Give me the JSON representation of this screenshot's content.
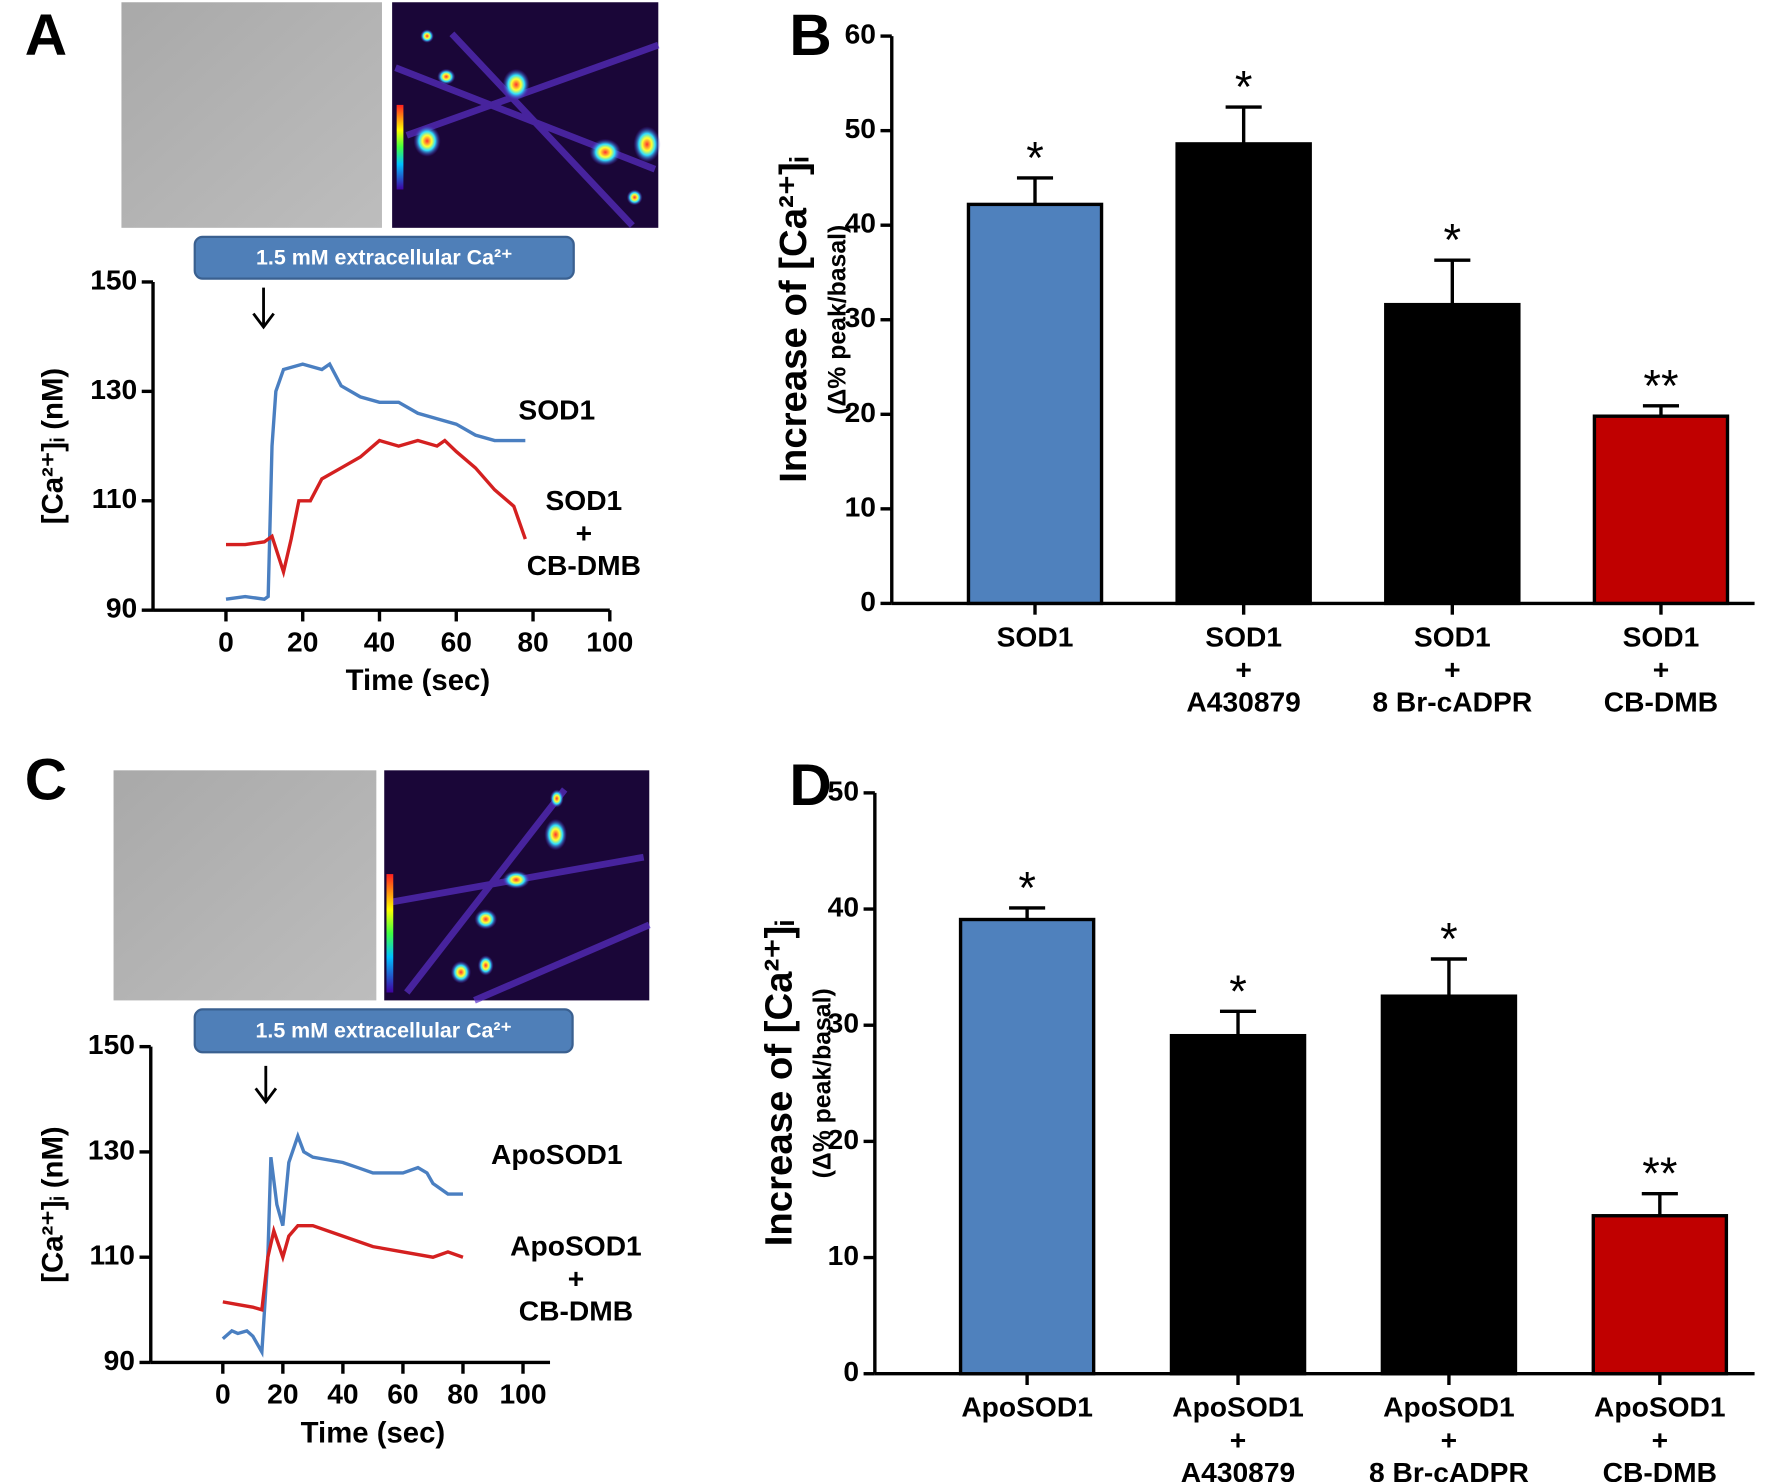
{
  "chart_data": [
    {
      "type": "line",
      "panel_label": "A",
      "annotation": "1.5 mM extracellular Ca²⁺",
      "x_label": "Time (sec)",
      "y_label": "[Ca²⁺]ᵢ (nM)",
      "xlim": [
        -19,
        100
      ],
      "xticks": [
        0,
        20,
        40,
        60,
        80,
        100
      ],
      "ylim": [
        90,
        150
      ],
      "yticks": [
        90,
        110,
        130,
        150
      ],
      "series": [
        {
          "name": "SOD1",
          "color": "#4a7fc1",
          "x": [
            0,
            5,
            10,
            11,
            12,
            13,
            15,
            20,
            25,
            27,
            30,
            35,
            40,
            45,
            50,
            55,
            60,
            65,
            70,
            75,
            78
          ],
          "values": [
            92,
            92.5,
            92,
            92.5,
            120,
            130,
            134,
            135,
            134,
            135,
            131,
            129,
            128,
            128,
            126,
            125,
            124,
            122,
            121,
            121,
            121
          ]
        },
        {
          "name": "SOD1\n+\nCB-DMB",
          "color": "#d42020",
          "x": [
            0,
            5,
            10,
            12,
            15,
            17,
            19,
            22,
            25,
            30,
            35,
            40,
            45,
            50,
            55,
            57,
            60,
            65,
            70,
            75,
            78
          ],
          "values": [
            102,
            102,
            102.5,
            103.5,
            97,
            103,
            110,
            110,
            114,
            116,
            118,
            121,
            120,
            121,
            120,
            121,
            119,
            116,
            112,
            109,
            103
          ]
        }
      ]
    },
    {
      "type": "bar",
      "panel_label": "B",
      "y_label": "Increase of [Ca²⁺]ᵢ",
      "y_label_note": "(Δ% peak/basal)",
      "categories": [
        "SOD1",
        "SOD1\n+\nA430879",
        "SOD1\n+\n8 Br-cADPR",
        "SOD1\n+\nCB-DMB"
      ],
      "values": [
        42.2,
        48.6,
        31.6,
        19.8
      ],
      "errors": [
        2.8,
        3.9,
        4.7,
        1.1
      ],
      "colors": [
        "#4f81bd",
        "#000000",
        "#000000",
        "#c00000"
      ],
      "significance": [
        "*",
        "*",
        "*",
        "**"
      ],
      "ylim": [
        0,
        60
      ],
      "yticks": [
        0,
        10,
        20,
        30,
        40,
        50,
        60
      ]
    },
    {
      "type": "line",
      "panel_label": "C",
      "annotation": "1.5 mM extracellular Ca²⁺",
      "x_label": "Time (sec)",
      "y_label": "[Ca²⁺]ᵢ (nM)",
      "xlim": [
        -24,
        109
      ],
      "xticks": [
        0,
        20,
        40,
        60,
        80,
        100
      ],
      "ylim": [
        90,
        150
      ],
      "yticks": [
        90,
        110,
        130,
        150
      ],
      "series": [
        {
          "name": "ApoSOD1",
          "color": "#4a7fc1",
          "x": [
            0,
            3,
            5,
            8,
            10,
            13,
            15,
            16,
            18,
            20,
            22,
            25,
            27,
            30,
            40,
            45,
            50,
            55,
            60,
            65,
            68,
            70,
            75,
            80
          ],
          "values": [
            94.5,
            96,
            95.5,
            96,
            95,
            92,
            110,
            129,
            120,
            116,
            128,
            133,
            130,
            129,
            128,
            127,
            126,
            126,
            126,
            127,
            126,
            124,
            122,
            122
          ]
        },
        {
          "name": "ApoSOD1\n+\nCB-DMB",
          "color": "#d42020",
          "x": [
            0,
            5,
            10,
            13,
            15,
            17,
            20,
            22,
            25,
            30,
            40,
            50,
            60,
            70,
            75,
            80
          ],
          "values": [
            101.5,
            101,
            100.5,
            100,
            110,
            115,
            110,
            114,
            116,
            116,
            114,
            112,
            111,
            110,
            111,
            110
          ]
        }
      ]
    },
    {
      "type": "bar",
      "panel_label": "D",
      "y_label": "Increase of [Ca²⁺]ᵢ",
      "y_label_note": "(Δ% peak/basal)",
      "categories": [
        "ApoSOD1",
        "ApoSOD1\n+\nA430879",
        "ApoSOD1\n+\n8 Br-cADPR",
        "ApoSOD1\n+\nCB-DMB"
      ],
      "values": [
        39.1,
        29.1,
        32.5,
        13.6
      ],
      "errors": [
        1.0,
        2.1,
        3.2,
        1.9
      ],
      "colors": [
        "#4f81bd",
        "#000000",
        "#000000",
        "#c00000"
      ],
      "significance": [
        "*",
        "*",
        "*",
        "**"
      ],
      "ylim": [
        0,
        50
      ],
      "yticks": [
        0,
        10,
        20,
        30,
        40,
        50
      ]
    }
  ]
}
